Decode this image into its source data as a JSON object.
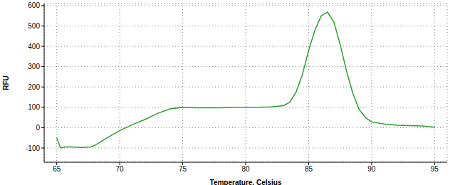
{
  "chart_data": {
    "type": "line",
    "x_label": "Temperature, Celsius",
    "y_label": "RFU",
    "x": [
      65,
      65.3,
      65.7,
      66,
      67,
      67.7,
      68,
      69,
      70,
      71,
      72,
      73,
      74,
      75,
      76,
      77,
      78,
      79,
      80,
      81,
      82,
      83,
      83.5,
      84,
      84.5,
      85,
      85.5,
      86,
      86.5,
      87,
      87.5,
      88,
      88.5,
      89,
      89.5,
      90,
      91,
      92,
      93,
      94,
      95
    ],
    "values": [
      -50,
      -100,
      -95,
      -95,
      -97,
      -95,
      -88,
      -50,
      -15,
      15,
      40,
      70,
      92,
      100,
      98,
      98,
      98,
      100,
      100,
      100,
      102,
      108,
      125,
      175,
      260,
      380,
      480,
      550,
      568,
      520,
      410,
      280,
      170,
      90,
      50,
      28,
      18,
      12,
      10,
      8,
      2
    ],
    "color": "#2e9e2e",
    "xlim": [
      64,
      96
    ],
    "ylim": [
      -170,
      610
    ],
    "xticks": [
      65,
      70,
      75,
      80,
      85,
      90,
      95
    ],
    "yticks": [
      -100,
      0,
      100,
      200,
      300,
      400,
      500,
      600
    ],
    "grid": true
  }
}
